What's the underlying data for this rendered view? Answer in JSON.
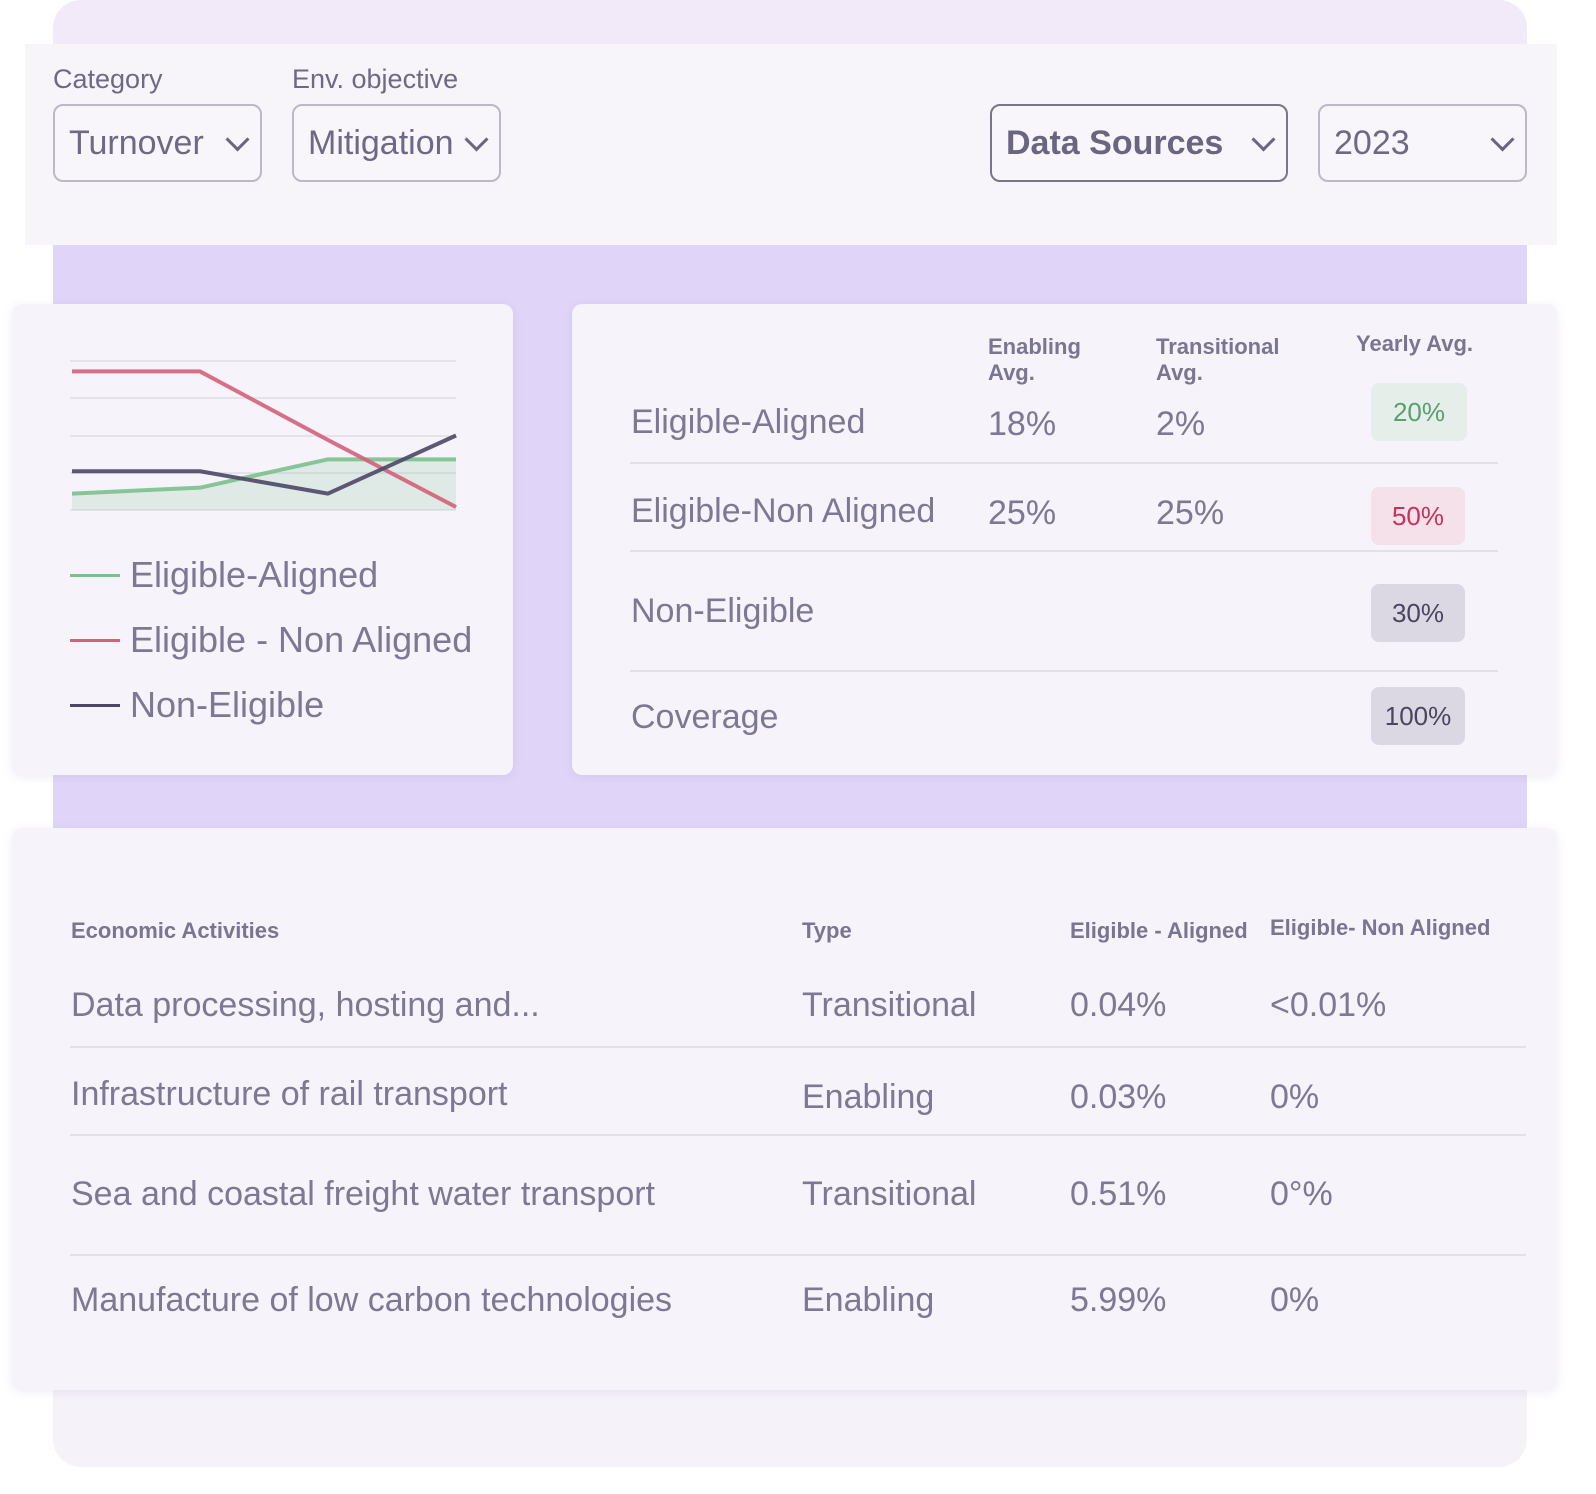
{
  "filters": {
    "category": {
      "label": "Category",
      "value": "Turnover"
    },
    "objective": {
      "label": "Env. objective",
      "value": "Mitigation"
    },
    "sources": "Data Sources",
    "year": "2023"
  },
  "chart_data": {
    "type": "line",
    "categories": [
      null,
      null,
      null,
      null
    ],
    "ylim": [
      0,
      100
    ],
    "series": [
      {
        "name": "Eligible-Aligned",
        "color": "#7cc08e",
        "values": [
          11,
          15,
          34,
          34
        ]
      },
      {
        "name": "Eligible - Non Aligned",
        "color": "#d4607a",
        "values": [
          93,
          93,
          47,
          2
        ]
      },
      {
        "name": "Non-Eligible",
        "color": "#4d4766",
        "values": [
          26,
          26,
          11,
          50
        ]
      }
    ]
  },
  "summary": {
    "headers": [
      "Enabling Avg.",
      "Transitional Avg.",
      "Yearly Avg."
    ],
    "rows": [
      {
        "label": "Eligible-Aligned",
        "enabling": "18%",
        "transitional": "2%",
        "yearly": "20%"
      },
      {
        "label": "Eligible-Non Aligned",
        "enabling": "25%",
        "transitional": "25%",
        "yearly": "50%"
      },
      {
        "label": "Non-Eligible",
        "yearly": "30%"
      },
      {
        "label": "Coverage",
        "yearly": "100%"
      }
    ]
  },
  "activities": {
    "headers": [
      "Economic Activities",
      "Type",
      "Eligible - Aligned",
      "Eligible- Non Aligned"
    ],
    "rows": [
      [
        "Data processing, hosting and...",
        "Transitional",
        "0.04%",
        "<0.01%"
      ],
      [
        "Infrastructure of rail transport",
        "Enabling",
        "0.03%",
        "0%"
      ],
      [
        "Sea and coastal freight water transport",
        "Transitional",
        "0.51%",
        "0°%"
      ],
      [
        "Manufacture of low carbon technologies",
        "Enabling",
        "5.99%",
        "0%"
      ]
    ]
  }
}
